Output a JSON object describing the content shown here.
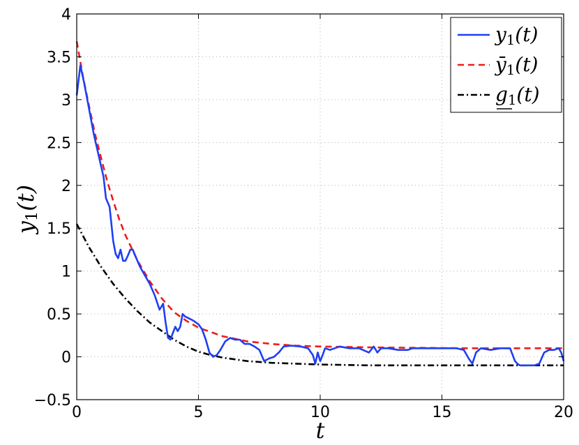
{
  "chart_data": {
    "type": "line",
    "xlabel": "t",
    "ylabel": "y_1(t)",
    "xlim": [
      0,
      20
    ],
    "ylim": [
      -0.5,
      4
    ],
    "xticks": [
      0,
      5,
      10,
      15,
      20
    ],
    "xtick_labels": [
      "0",
      "5",
      "10",
      "15",
      "20"
    ],
    "yticks": [
      -0.5,
      0,
      0.5,
      1,
      1.5,
      2,
      2.5,
      3,
      3.5,
      4
    ],
    "ytick_labels": [
      "−0.5",
      "0",
      "0.5",
      "1",
      "1.5",
      "2",
      "2.5",
      "3",
      "3.5",
      "4"
    ],
    "grid": true,
    "legend_position": "top-right",
    "series": [
      {
        "name": "y_1(t)",
        "color": "#1f3ff2",
        "style": "solid",
        "x": [
          0,
          0.15,
          0.3,
          0.5,
          0.7,
          0.9,
          1.1,
          1.2,
          1.35,
          1.5,
          1.6,
          1.7,
          1.8,
          1.9,
          2.0,
          2.1,
          2.2,
          2.3,
          2.4,
          2.6,
          2.8,
          3.0,
          3.2,
          3.4,
          3.55,
          3.65,
          3.75,
          3.85,
          3.95,
          4.05,
          4.15,
          4.25,
          4.35,
          4.45,
          4.6,
          4.8,
          5.0,
          5.15,
          5.3,
          5.45,
          5.6,
          5.75,
          5.9,
          6.1,
          6.3,
          6.5,
          6.7,
          6.9,
          7.1,
          7.3,
          7.5,
          7.7,
          7.9,
          8.1,
          8.3,
          8.5,
          8.8,
          9.2,
          9.5,
          9.7,
          9.8,
          9.9,
          10.0,
          10.1,
          10.2,
          10.4,
          10.8,
          11.2,
          11.6,
          12.0,
          12.2,
          12.35,
          12.5,
          12.8,
          13.2,
          13.6,
          13.8,
          14.0,
          14.4,
          14.8,
          15.2,
          15.6,
          15.9,
          16.1,
          16.25,
          16.4,
          16.6,
          17.0,
          17.4,
          17.8,
          18.0,
          18.1,
          18.2,
          18.5,
          18.8,
          19.0,
          19.2,
          19.4,
          19.6,
          19.8,
          19.9,
          20.0
        ],
        "y": [
          3.05,
          3.4,
          3.2,
          2.9,
          2.6,
          2.35,
          2.1,
          1.85,
          1.75,
          1.35,
          1.2,
          1.15,
          1.25,
          1.12,
          1.12,
          1.18,
          1.25,
          1.25,
          1.18,
          1.05,
          0.95,
          0.85,
          0.72,
          0.55,
          0.62,
          0.4,
          0.22,
          0.2,
          0.28,
          0.35,
          0.3,
          0.35,
          0.5,
          0.47,
          0.45,
          0.42,
          0.38,
          0.32,
          0.2,
          0.05,
          0.0,
          0.02,
          0.08,
          0.18,
          0.22,
          0.2,
          0.2,
          0.15,
          0.15,
          0.12,
          0.08,
          -0.05,
          -0.02,
          0.0,
          0.05,
          0.12,
          0.13,
          0.12,
          0.1,
          0.02,
          -0.08,
          0.05,
          -0.05,
          0.02,
          0.1,
          0.08,
          0.12,
          0.1,
          0.1,
          0.05,
          0.12,
          0.05,
          0.1,
          0.1,
          0.08,
          0.08,
          0.1,
          0.1,
          0.1,
          0.1,
          0.1,
          0.1,
          0.08,
          -0.02,
          -0.08,
          0.05,
          0.1,
          0.08,
          0.1,
          0.1,
          -0.05,
          -0.08,
          -0.1,
          -0.1,
          -0.1,
          -0.08,
          0.05,
          0.08,
          0.08,
          0.1,
          0.05,
          -0.05
        ]
      },
      {
        "name": "ȳ_1(t)",
        "color": "#ee1c1c",
        "style": "dashed",
        "x": [
          0,
          0.25,
          0.5,
          0.75,
          1.0,
          1.25,
          1.5,
          1.75,
          2.0,
          2.5,
          3.0,
          3.5,
          4.0,
          4.5,
          5.0,
          6.0,
          7.0,
          8.0,
          9.0,
          10.0,
          12.0,
          14.0,
          16.0,
          18.0,
          20.0
        ],
        "y": [
          3.68,
          3.28,
          2.93,
          2.6,
          2.32,
          2.05,
          1.82,
          1.6,
          1.42,
          1.12,
          0.88,
          0.68,
          0.52,
          0.42,
          0.34,
          0.24,
          0.18,
          0.15,
          0.13,
          0.12,
          0.11,
          0.105,
          0.1,
          0.1,
          0.1
        ]
      },
      {
        "name": "g_1(t)",
        "color": "#000000",
        "style": "dashdot",
        "x": [
          0,
          0.5,
          1.0,
          1.5,
          2.0,
          2.5,
          3.0,
          3.5,
          4.0,
          4.5,
          5.0,
          5.5,
          6.0,
          7.0,
          8.0,
          9.0,
          10.0,
          12.0,
          14.0,
          16.0,
          18.0,
          20.0
        ],
        "y": [
          1.55,
          1.28,
          1.05,
          0.85,
          0.68,
          0.53,
          0.4,
          0.3,
          0.2,
          0.12,
          0.06,
          0.02,
          -0.01,
          -0.05,
          -0.07,
          -0.08,
          -0.09,
          -0.1,
          -0.1,
          -0.1,
          -0.1,
          -0.1
        ]
      }
    ]
  }
}
